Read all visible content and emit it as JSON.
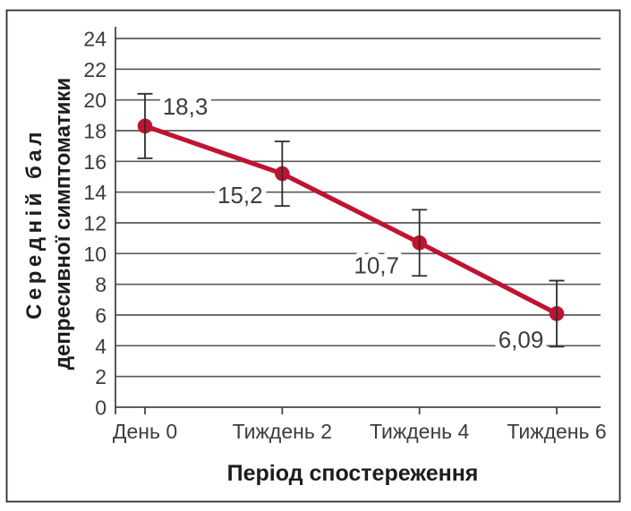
{
  "chart_data": {
    "type": "line",
    "categories": [
      "День 0",
      "Тиждень 2",
      "Тиждень 4",
      "Тиждень 6"
    ],
    "values": [
      18.3,
      15.2,
      10.7,
      6.09
    ],
    "errors": [
      2.1,
      2.1,
      2.15,
      2.15
    ],
    "point_labels": [
      "18,3",
      "15,2",
      "10,7",
      "6,09"
    ],
    "xlabel": "Період спостереження",
    "ylabel": "Середній бал депресивної симптоматики",
    "ylabel_lines": [
      "Середній бал",
      "депресивної симптоматики"
    ],
    "ylim": [
      0,
      24
    ],
    "yticks": [
      0,
      2,
      4,
      6,
      8,
      10,
      12,
      14,
      16,
      18,
      20,
      22,
      24
    ],
    "grid": true,
    "legend_position": "none",
    "line_color": "#be1432",
    "grid_color": "#5a5a5a",
    "error_bar_color": "#2d2d2d"
  }
}
